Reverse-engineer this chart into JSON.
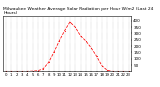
{
  "title": "Milwaukee Weather Average Solar Radiation per Hour W/m2 (Last 24 Hours)",
  "hours": [
    0,
    1,
    2,
    3,
    4,
    5,
    6,
    7,
    8,
    9,
    10,
    11,
    12,
    13,
    14,
    15,
    16,
    17,
    18,
    19,
    20,
    21,
    22,
    23
  ],
  "values": [
    0,
    0,
    0,
    0,
    0,
    2,
    5,
    20,
    70,
    150,
    240,
    320,
    390,
    350,
    280,
    240,
    185,
    120,
    45,
    8,
    0,
    0,
    0,
    0
  ],
  "line_color": "#ff0000",
  "bg_color": "#ffffff",
  "grid_color": "#888888",
  "ylim": [
    0,
    440
  ],
  "ytick_values": [
    50,
    100,
    150,
    200,
    250,
    300,
    350,
    400
  ],
  "ytick_labels": [
    "50",
    "100",
    "150",
    "200",
    "250",
    "300",
    "350",
    "400"
  ],
  "xtick_positions": [
    0,
    1,
    2,
    3,
    4,
    5,
    6,
    7,
    8,
    9,
    10,
    11,
    12,
    13,
    14,
    15,
    16,
    17,
    18,
    19,
    20,
    21,
    22,
    23
  ],
  "ylabel_fontsize": 3.0,
  "xlabel_fontsize": 2.8,
  "title_fontsize": 3.2,
  "linewidth": 0.55,
  "markersize": 1.5
}
